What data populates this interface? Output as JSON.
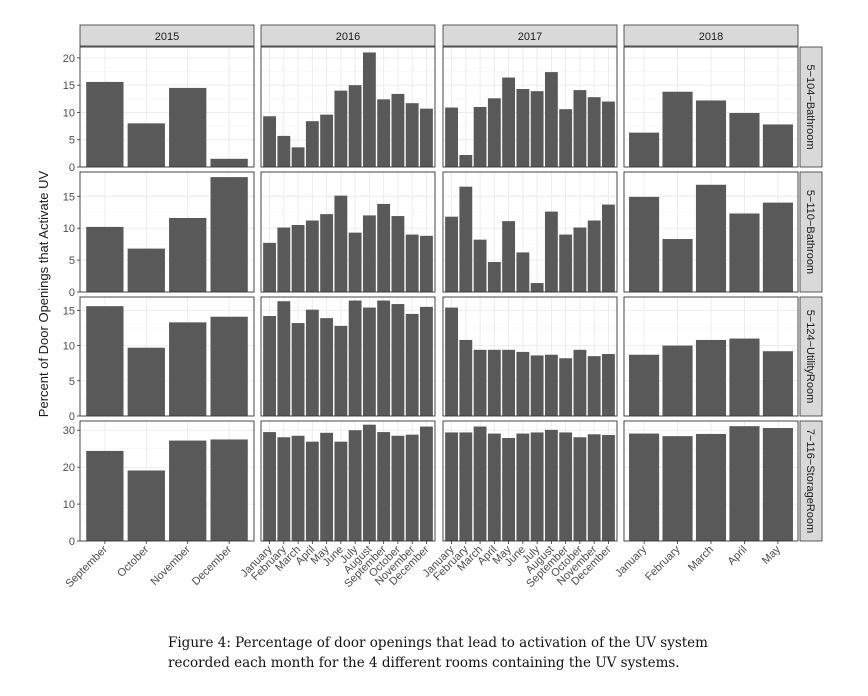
{
  "chart_data": {
    "type": "bar",
    "ylabel": "Percent of Door Openings that Activate UV",
    "xlabel": "",
    "grid": true,
    "years": [
      "2015",
      "2016",
      "2017",
      "2018"
    ],
    "months_by_year": [
      [
        "September",
        "October",
        "November",
        "December"
      ],
      [
        "January",
        "February",
        "March",
        "April",
        "May",
        "June",
        "July",
        "August",
        "September",
        "October",
        "November",
        "December"
      ],
      [
        "January",
        "February",
        "March",
        "April",
        "May",
        "June",
        "July",
        "August",
        "September",
        "October",
        "November",
        "December"
      ],
      [
        "January",
        "February",
        "March",
        "April",
        "May"
      ]
    ],
    "rooms": [
      {
        "name": "5−104−Bathroom",
        "ylim": [
          0,
          22
        ],
        "yticks": [
          0,
          5,
          10,
          15,
          20
        ],
        "values": [
          [
            15.6,
            8.0,
            14.5,
            1.5
          ],
          [
            9.3,
            5.7,
            3.6,
            8.4,
            9.6,
            14.0,
            15.0,
            21.0,
            12.4,
            13.4,
            11.7,
            10.7
          ],
          [
            10.9,
            2.2,
            11.0,
            12.6,
            16.4,
            14.3,
            13.9,
            17.4,
            10.6,
            14.1,
            12.8,
            12.0
          ],
          [
            6.3,
            13.8,
            12.2,
            9.9,
            7.8
          ]
        ]
      },
      {
        "name": "5−110−Bathroom",
        "ylim": [
          0,
          18.8
        ],
        "yticks": [
          0,
          5,
          10,
          15
        ],
        "values": [
          [
            10.2,
            6.8,
            11.6,
            18.0
          ],
          [
            7.7,
            10.1,
            10.5,
            11.2,
            12.2,
            15.1,
            9.3,
            12.0,
            13.8,
            11.9,
            9.0,
            8.8
          ],
          [
            11.8,
            16.5,
            8.2,
            4.7,
            11.1,
            6.2,
            1.4,
            12.6,
            9.0,
            10.1,
            11.2,
            13.7
          ],
          [
            14.9,
            8.3,
            16.8,
            12.3,
            14.0
          ]
        ]
      },
      {
        "name": "5−124−UtilityRoom",
        "ylim": [
          0,
          16.9
        ],
        "yticks": [
          0,
          5,
          10,
          15
        ],
        "values": [
          [
            15.6,
            9.7,
            13.3,
            14.1
          ],
          [
            14.2,
            16.3,
            13.2,
            15.1,
            13.9,
            12.8,
            16.4,
            15.4,
            16.4,
            15.9,
            14.5,
            15.5
          ],
          [
            15.4,
            10.8,
            9.4,
            9.4,
            9.4,
            9.1,
            8.6,
            8.7,
            8.2,
            9.4,
            8.5,
            8.8
          ],
          [
            8.7,
            10.0,
            10.8,
            11.0,
            9.2
          ]
        ]
      },
      {
        "name": "7−116−StorageRoom",
        "ylim": [
          0,
          32.5
        ],
        "yticks": [
          0,
          10,
          20,
          30
        ],
        "values": [
          [
            24.4,
            19.1,
            27.2,
            27.5
          ],
          [
            29.5,
            28.1,
            28.5,
            26.9,
            29.3,
            26.9,
            30.0,
            31.5,
            29.5,
            28.5,
            28.8,
            31.0
          ],
          [
            29.4,
            29.4,
            31.0,
            29.1,
            27.9,
            29.1,
            29.4,
            30.1,
            29.4,
            28.1,
            28.9,
            28.7
          ],
          [
            29.1,
            28.4,
            29.0,
            31.1,
            30.6
          ]
        ]
      }
    ]
  },
  "caption": {
    "line1": "Figure 4: Percentage of door openings that lead to activation of the UV system",
    "line2": "recorded each month for the 4 different rooms containing the UV systems."
  },
  "colors": {
    "bar": "#595959",
    "strip": "#d9d9d9",
    "grid_major": "#ebebeb",
    "grid_minor": "#f4f4f4",
    "panel_border": "#333333",
    "text": "#1a1a1a",
    "axis_text": "#4d4d4d"
  }
}
